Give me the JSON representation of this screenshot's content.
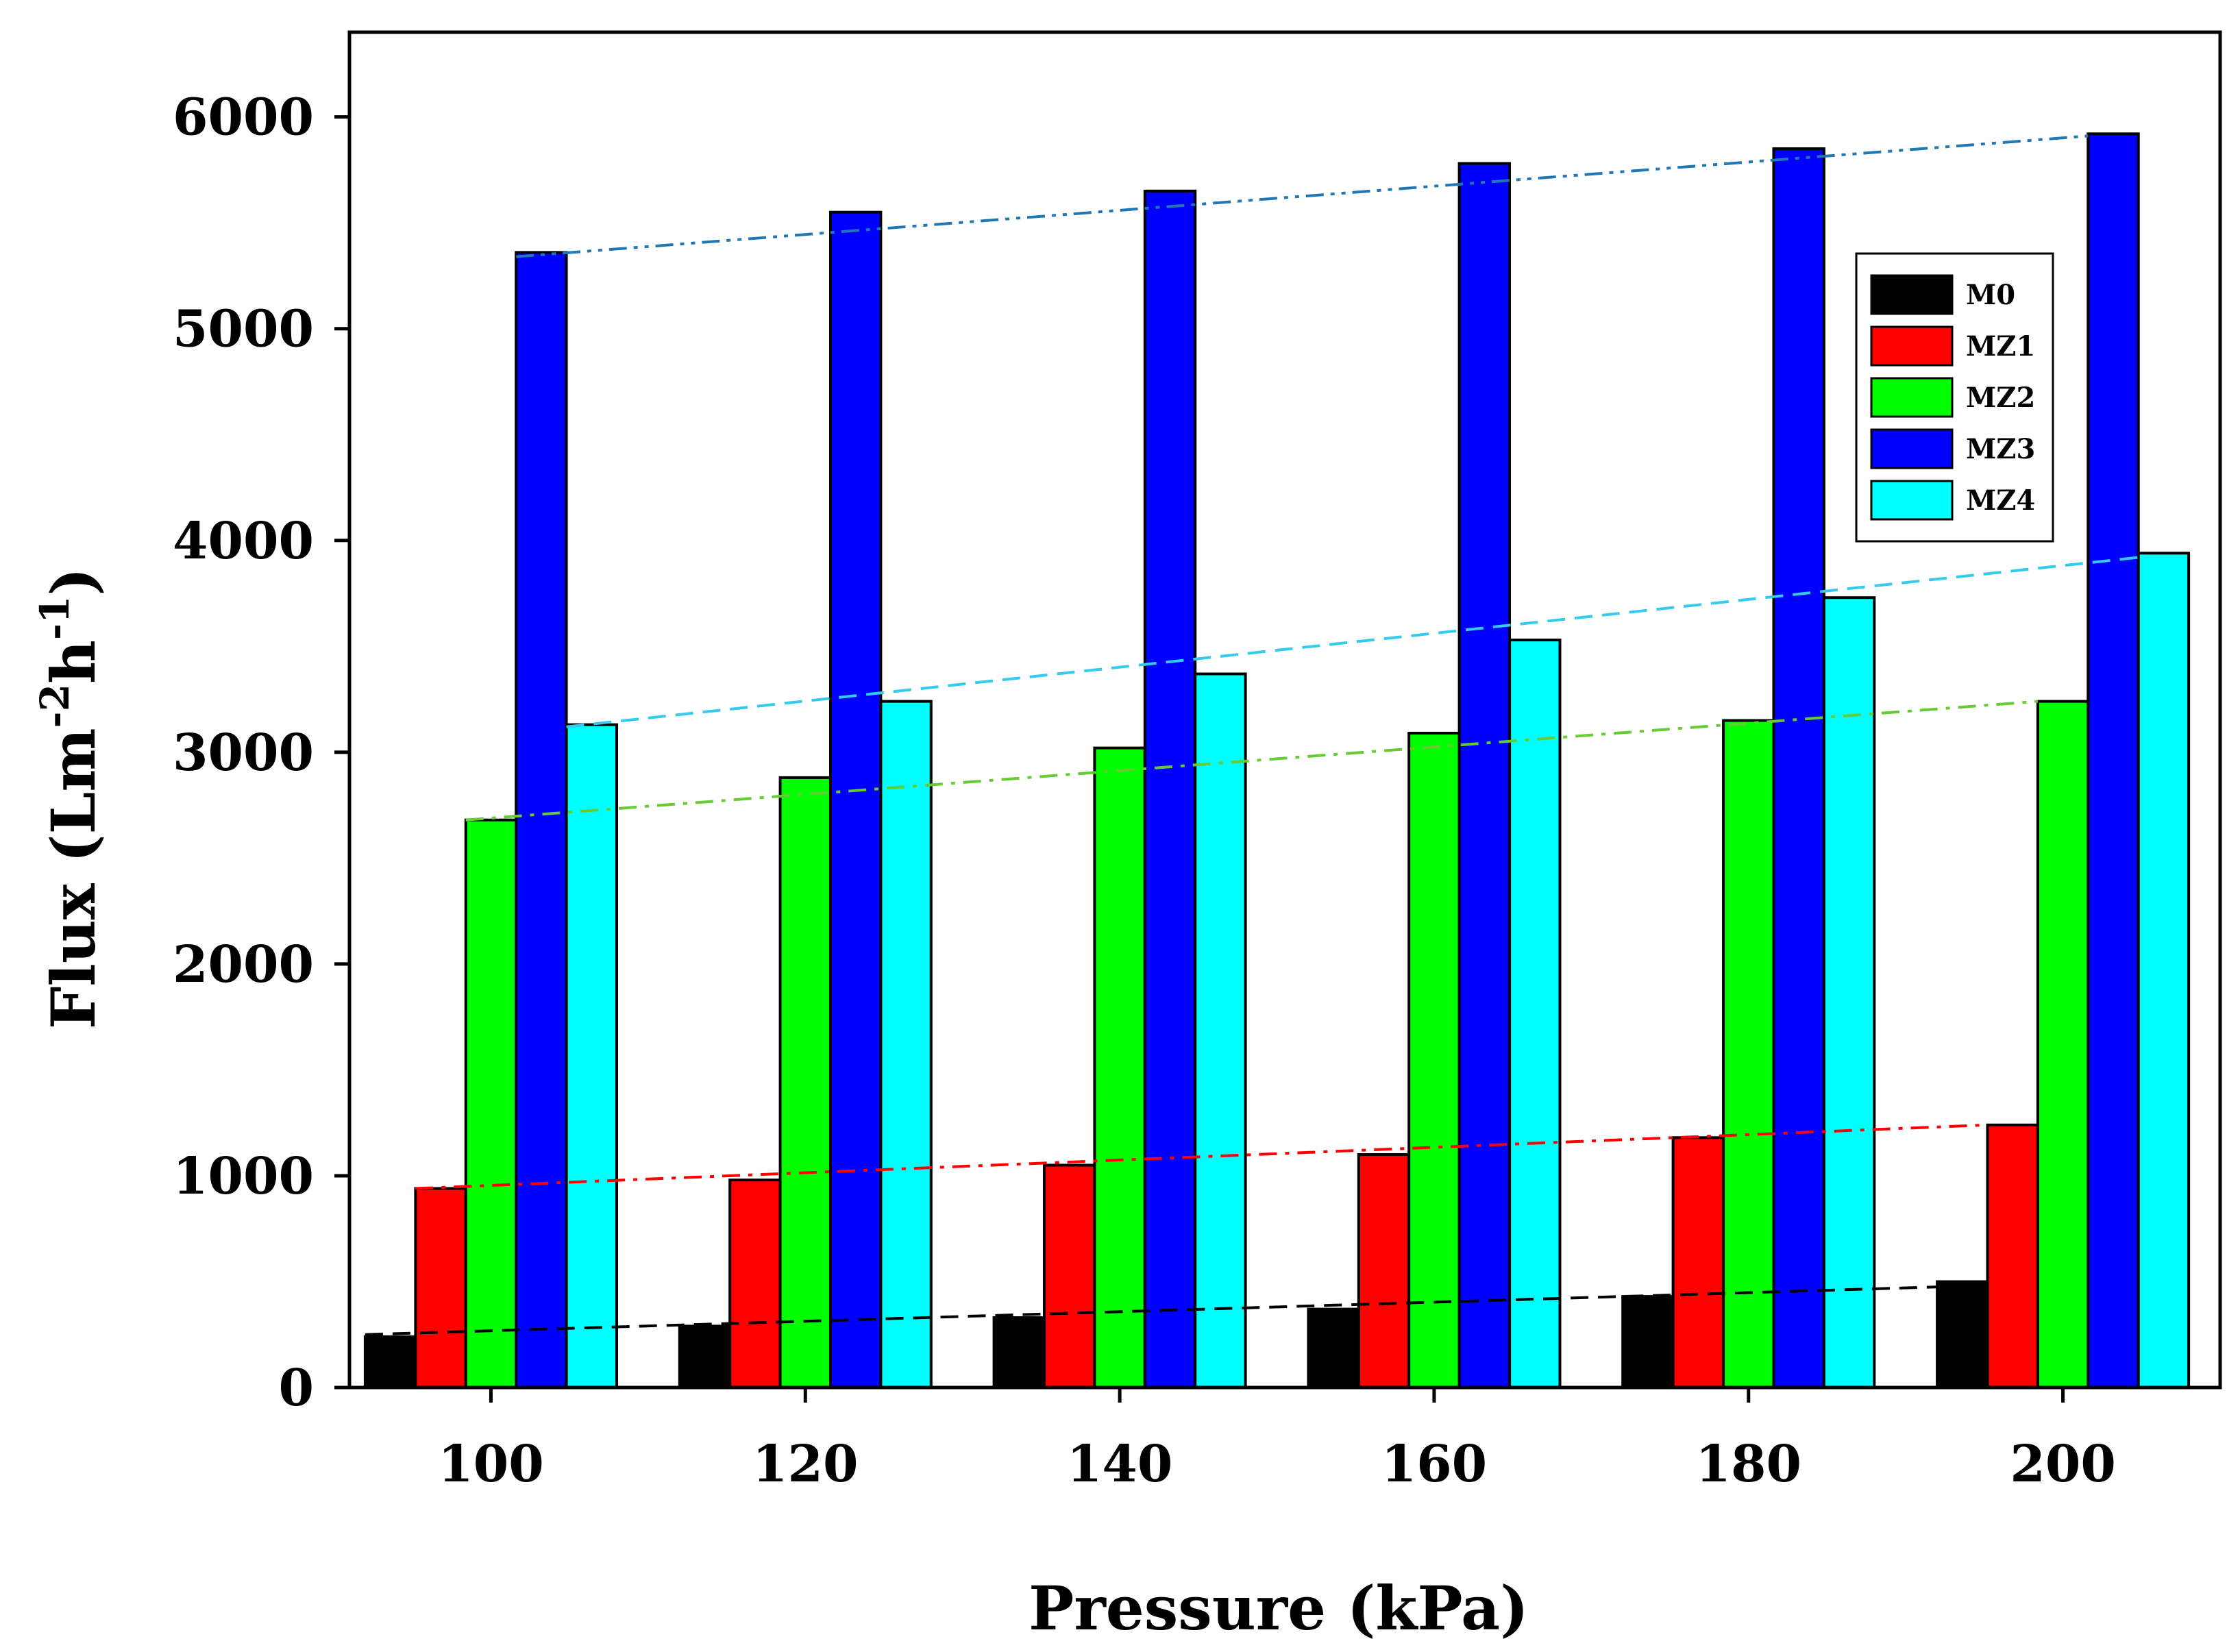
{
  "chart_data": {
    "type": "bar",
    "title": "",
    "xlabel": "Pressure (kPa)",
    "ylabel": {
      "main": "Flux (Lm",
      "exp1": "-2",
      "mid": "h",
      "exp2": "-1",
      "close": ")"
    },
    "categories": [
      "100",
      "120",
      "140",
      "160",
      "180",
      "200"
    ],
    "x_values": [
      100,
      120,
      140,
      160,
      180,
      200
    ],
    "ylim": [
      0,
      6400
    ],
    "xlim": [
      91,
      210
    ],
    "yticks": [
      0,
      1000,
      2000,
      3000,
      4000,
      5000,
      6000
    ],
    "ytick_labels": [
      "0",
      "1000",
      "2000",
      "3000",
      "4000",
      "5000",
      "6000"
    ],
    "grid": false,
    "legend_position": "top-right",
    "bar_group_span": 16,
    "series": [
      {
        "name": "M0",
        "color": "#000000",
        "trend_color": "#000000",
        "trend_style": "dash",
        "values": [
          240,
          290,
          330,
          370,
          430,
          500
        ],
        "trend": [
          250,
          475
        ]
      },
      {
        "name": "MZ1",
        "color": "#ff0000",
        "trend_color": "#ff0000",
        "trend_style": "dash-dot",
        "values": [
          940,
          980,
          1050,
          1100,
          1180,
          1240
        ],
        "trend": [
          940,
          1240
        ]
      },
      {
        "name": "MZ2",
        "color": "#00ff00",
        "trend_color": "#66cc33",
        "trend_style": "dash-dot",
        "values": [
          2680,
          2880,
          3020,
          3090,
          3150,
          3240
        ],
        "trend": [
          2680,
          3240
        ]
      },
      {
        "name": "MZ3",
        "color": "#0000ff",
        "trend_color": "#1f77b4",
        "trend_style": "dash-dot-dot",
        "values": [
          5360,
          5550,
          5650,
          5780,
          5850,
          5920
        ],
        "trend": [
          5340,
          5910
        ]
      },
      {
        "name": "MZ4",
        "color": "#00ffff",
        "trend_color": "#33ccee",
        "trend_style": "dash",
        "values": [
          3130,
          3240,
          3370,
          3530,
          3730,
          3940
        ],
        "trend": [
          3120,
          3920
        ]
      }
    ]
  }
}
